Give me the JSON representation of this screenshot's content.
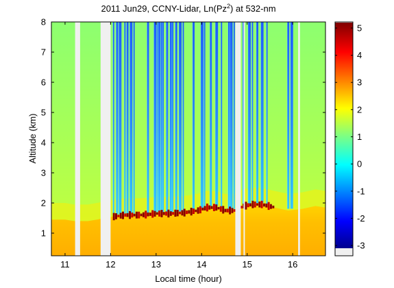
{
  "chart_data": {
    "type": "heatmap",
    "title_main": "2011 Jun29, CCNY-Lidar, Ln(Pz",
    "title_sup": "2",
    "title_tail": ") at 532-nm",
    "xlabel": "Local time (hour)",
    "ylabel": "Altitude (km)",
    "xlim": [
      10.7,
      16.72
    ],
    "ylim": [
      0.25,
      8.0
    ],
    "x_ticks": [
      "11",
      "12",
      "13",
      "14",
      "15",
      "16"
    ],
    "y_ticks": [
      "1",
      "2",
      "3",
      "4",
      "5",
      "6",
      "7",
      "8"
    ],
    "colorbar": {
      "range": [
        -3.1,
        5.2
      ],
      "ticks": [
        "-3",
        "-2",
        "-1",
        "0",
        "1",
        "2",
        "3",
        "4",
        "5"
      ],
      "colormap": "jet",
      "nodata_color": "#f0f0f0"
    },
    "gaps": [
      [
        11.22,
        11.33
      ],
      [
        11.78,
        12.0
      ],
      [
        14.74,
        14.86
      ],
      [
        14.92,
        14.95
      ],
      [
        16.12,
        16.16
      ]
    ],
    "boundary_layer_top_km": {
      "x": [
        10.7,
        11.0,
        11.2,
        11.5,
        11.7,
        12.05,
        12.3,
        12.6,
        12.8,
        13.0,
        13.3,
        13.6,
        13.9,
        14.1,
        14.3,
        14.5,
        14.7,
        14.9,
        15.1,
        15.3,
        15.6,
        15.9,
        16.2,
        16.5,
        16.72
      ],
      "y": [
        1.45,
        1.45,
        1.4,
        1.4,
        1.45,
        1.55,
        1.6,
        1.6,
        1.62,
        1.65,
        1.65,
        1.68,
        1.75,
        1.85,
        1.85,
        1.75,
        1.75,
        1.9,
        1.95,
        1.95,
        1.85,
        1.75,
        1.8,
        1.9,
        1.85
      ]
    },
    "cloud_top_km": [
      1.6,
      1.9,
      2.0
    ],
    "stripes_x": [
      12.05,
      12.12,
      12.18,
      12.3,
      12.35,
      12.42,
      12.5,
      12.8,
      12.95,
      13.02,
      13.05,
      13.1,
      13.14,
      13.22,
      13.3,
      13.35,
      13.42,
      13.5,
      13.58,
      13.8,
      13.98,
      14.05,
      14.18,
      14.3,
      14.42,
      14.58,
      14.62,
      14.7,
      14.9,
      15.02,
      15.1,
      15.2,
      15.3,
      15.42,
      15.88,
      15.95
    ]
  }
}
